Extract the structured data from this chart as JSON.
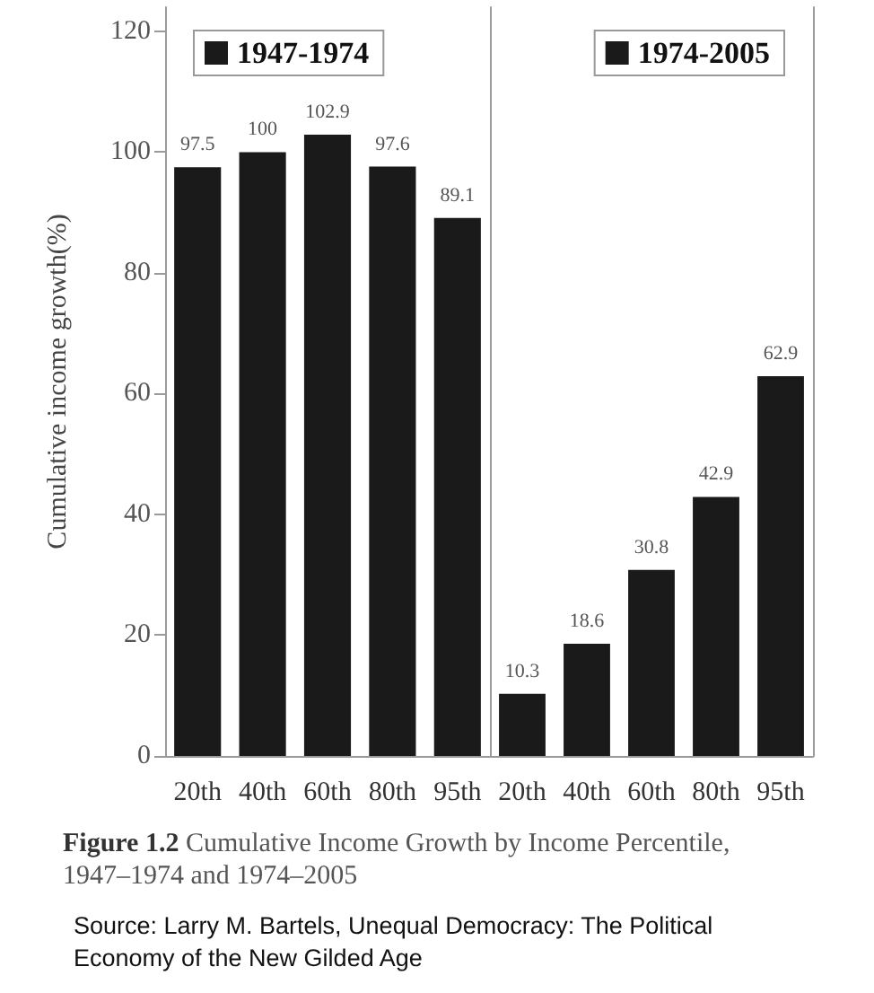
{
  "chart_data": [
    {
      "type": "bar",
      "title": "Figure 1.2 Cumulative Income Growth by Income Percentile, 1947–1974 and 1974–2005",
      "ylabel": "Cumulative income growth(%)",
      "categories": [
        "20th",
        "40th",
        "60th",
        "80th",
        "95th"
      ],
      "series": [
        {
          "name": "1947-1974",
          "color": "#1a1a1a",
          "values": [
            97.5,
            100,
            102.9,
            97.6,
            89.1
          ]
        }
      ],
      "ylim": [
        0,
        124
      ],
      "yticks": [
        0,
        20,
        40,
        60,
        80,
        100,
        120
      ],
      "data_labels": true,
      "legend": "top left",
      "annotations": [
        "Source: Larry M. Bartels, Unequal Democracy: The Political Economy of the New Gilded Age"
      ]
    },
    {
      "type": "bar",
      "categories": [
        "20th",
        "40th",
        "60th",
        "80th",
        "95th"
      ],
      "series": [
        {
          "name": "1974-2005",
          "color": "#1a1a1a",
          "values": [
            10.3,
            18.6,
            30.8,
            42.9,
            62.9
          ]
        }
      ],
      "ylim": [
        0,
        124
      ],
      "yticks": [
        0,
        20,
        40,
        60,
        80,
        100,
        120
      ],
      "data_labels": true,
      "legend": "top right",
      "tick_labels": "x"
    }
  ]
}
